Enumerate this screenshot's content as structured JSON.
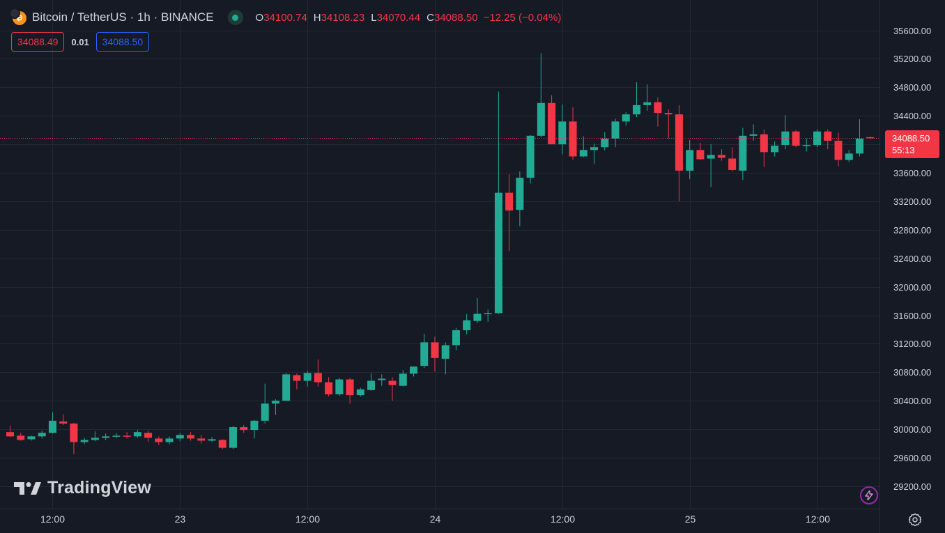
{
  "symbol": {
    "name": "Bitcoin / TetherUS",
    "separator1": "·",
    "interval": "1h",
    "separator2": "·",
    "exchange": "BINANCE",
    "coin_glyph": "₿"
  },
  "ohlc": {
    "o_label": "O",
    "o_value": "34100.74",
    "h_label": "H",
    "h_value": "34108.23",
    "l_label": "L",
    "l_value": "34070.44",
    "c_label": "C",
    "c_value": "34088.50",
    "change": "−12.25 (−0.04%)"
  },
  "quote": {
    "sell": "34088.49",
    "spread": "0.01",
    "buy": "34088.50"
  },
  "last_price": {
    "value": "34088.50",
    "countdown": "55:13",
    "numeric": 34088.5
  },
  "branding": {
    "logo_text": "TradingView"
  },
  "icons": {
    "coin": "bitcoin-icon",
    "status": "market-open-dot-icon",
    "flash": "lightning-icon",
    "settings": "gear-icon"
  },
  "colors": {
    "up": "#22ab94",
    "down": "#f23645",
    "background": "#161a25",
    "grid": "#242834",
    "axis_text": "#d1d4dc",
    "buy": "#2962ff"
  },
  "chart_data": {
    "type": "candlestick",
    "title": "Bitcoin / TetherUS · 1h · BINANCE",
    "y_ticks": [
      35600,
      35200,
      34800,
      34400,
      34000,
      33600,
      33200,
      32800,
      32400,
      32000,
      31600,
      31200,
      30800,
      30400,
      30000,
      29600,
      29200
    ],
    "y_tick_labels": [
      "35600.00",
      "35200.00",
      "34800.00",
      "34400.00",
      "34000.00",
      "33600.00",
      "33200.00",
      "32800.00",
      "32400.00",
      "32000.00",
      "31600.00",
      "31200.00",
      "30800.00",
      "30400.00",
      "30000.00",
      "29600.00",
      "29200.00"
    ],
    "ylim": [
      29000,
      35800
    ],
    "x_ticks": [
      {
        "label": "12:00",
        "bar": 4
      },
      {
        "label": "23",
        "bar": 16
      },
      {
        "label": "12:00",
        "bar": 28
      },
      {
        "label": "24",
        "bar": 40
      },
      {
        "label": "12:00",
        "bar": 52
      },
      {
        "label": "25",
        "bar": 64
      },
      {
        "label": "12:00",
        "bar": 76
      }
    ],
    "grid": true,
    "ohlc": [
      [
        29960,
        30050,
        29890,
        29900
      ],
      [
        29910,
        29950,
        29840,
        29850
      ],
      [
        29860,
        29910,
        29840,
        29900
      ],
      [
        29900,
        29980,
        29870,
        29950
      ],
      [
        29950,
        30240,
        29940,
        30120
      ],
      [
        30110,
        30210,
        30060,
        30080
      ],
      [
        30080,
        30090,
        29650,
        29820
      ],
      [
        29820,
        29880,
        29790,
        29850
      ],
      [
        29850,
        29970,
        29830,
        29880
      ],
      [
        29880,
        29940,
        29850,
        29900
      ],
      [
        29900,
        29950,
        29880,
        29910
      ],
      [
        29910,
        29960,
        29870,
        29900
      ],
      [
        29900,
        29990,
        29880,
        29960
      ],
      [
        29950,
        29980,
        29820,
        29880
      ],
      [
        29870,
        29900,
        29780,
        29820
      ],
      [
        29820,
        29900,
        29790,
        29870
      ],
      [
        29870,
        29950,
        29830,
        29920
      ],
      [
        29920,
        29960,
        29840,
        29870
      ],
      [
        29870,
        29920,
        29800,
        29840
      ],
      [
        29840,
        29890,
        29820,
        29860
      ],
      [
        29850,
        29860,
        29720,
        29740
      ],
      [
        29740,
        30050,
        29720,
        30030
      ],
      [
        30030,
        30060,
        29950,
        29990
      ],
      [
        29990,
        30130,
        29870,
        30120
      ],
      [
        30120,
        30640,
        30080,
        30360
      ],
      [
        30360,
        30420,
        30200,
        30400
      ],
      [
        30400,
        30790,
        30400,
        30770
      ],
      [
        30760,
        30780,
        30560,
        30680
      ],
      [
        30680,
        30820,
        30600,
        30790
      ],
      [
        30790,
        30980,
        30600,
        30660
      ],
      [
        30660,
        30730,
        30460,
        30490
      ],
      [
        30490,
        30720,
        30470,
        30700
      ],
      [
        30700,
        30720,
        30360,
        30480
      ],
      [
        30480,
        30580,
        30460,
        30560
      ],
      [
        30550,
        30790,
        30540,
        30680
      ],
      [
        30690,
        30770,
        30610,
        30710
      ],
      [
        30680,
        30730,
        30400,
        30620
      ],
      [
        30610,
        30830,
        30600,
        30780
      ],
      [
        30780,
        30880,
        30740,
        30880
      ],
      [
        30890,
        31340,
        30860,
        31220
      ],
      [
        31220,
        31300,
        30810,
        31000
      ],
      [
        30990,
        31220,
        30770,
        31180
      ],
      [
        31180,
        31420,
        31110,
        31390
      ],
      [
        31390,
        31620,
        31330,
        31530
      ],
      [
        31520,
        31840,
        31490,
        31620
      ],
      [
        31620,
        31680,
        31510,
        31630
      ],
      [
        31630,
        34740,
        31620,
        33320
      ],
      [
        33320,
        33580,
        32500,
        33070
      ],
      [
        33080,
        33620,
        32850,
        33530
      ],
      [
        33530,
        34130,
        33450,
        34120
      ],
      [
        34120,
        35280,
        34100,
        34580
      ],
      [
        34580,
        34690,
        34000,
        34000
      ],
      [
        34000,
        34560,
        33860,
        34320
      ],
      [
        34320,
        34520,
        33780,
        33830
      ],
      [
        33830,
        34110,
        33820,
        33920
      ],
      [
        33920,
        34010,
        33720,
        33960
      ],
      [
        33960,
        34170,
        33910,
        34080
      ],
      [
        34080,
        34360,
        33960,
        34320
      ],
      [
        34320,
        34450,
        34260,
        34420
      ],
      [
        34420,
        34870,
        34380,
        34550
      ],
      [
        34550,
        34840,
        34470,
        34590
      ],
      [
        34590,
        34660,
        34250,
        34440
      ],
      [
        34440,
        34490,
        34080,
        34420
      ],
      [
        34420,
        34550,
        33200,
        33630
      ],
      [
        33630,
        34060,
        33510,
        33920
      ],
      [
        33920,
        34020,
        33780,
        33790
      ],
      [
        33800,
        34000,
        33400,
        33850
      ],
      [
        33850,
        33930,
        33770,
        33810
      ],
      [
        33800,
        33960,
        33620,
        33640
      ],
      [
        33630,
        34230,
        33500,
        34120
      ],
      [
        34120,
        34280,
        34050,
        34140
      ],
      [
        34140,
        34210,
        33680,
        33890
      ],
      [
        33890,
        34040,
        33830,
        33980
      ],
      [
        33990,
        34410,
        33930,
        34180
      ],
      [
        34180,
        34200,
        33960,
        33980
      ],
      [
        33980,
        34080,
        33900,
        33990
      ],
      [
        33990,
        34210,
        33960,
        34180
      ],
      [
        34180,
        34210,
        33930,
        34050
      ],
      [
        34050,
        34160,
        33690,
        33780
      ],
      [
        33780,
        33920,
        33750,
        33870
      ],
      [
        33870,
        34350,
        33830,
        34080
      ],
      [
        34100,
        34108,
        34070,
        34088
      ]
    ]
  }
}
